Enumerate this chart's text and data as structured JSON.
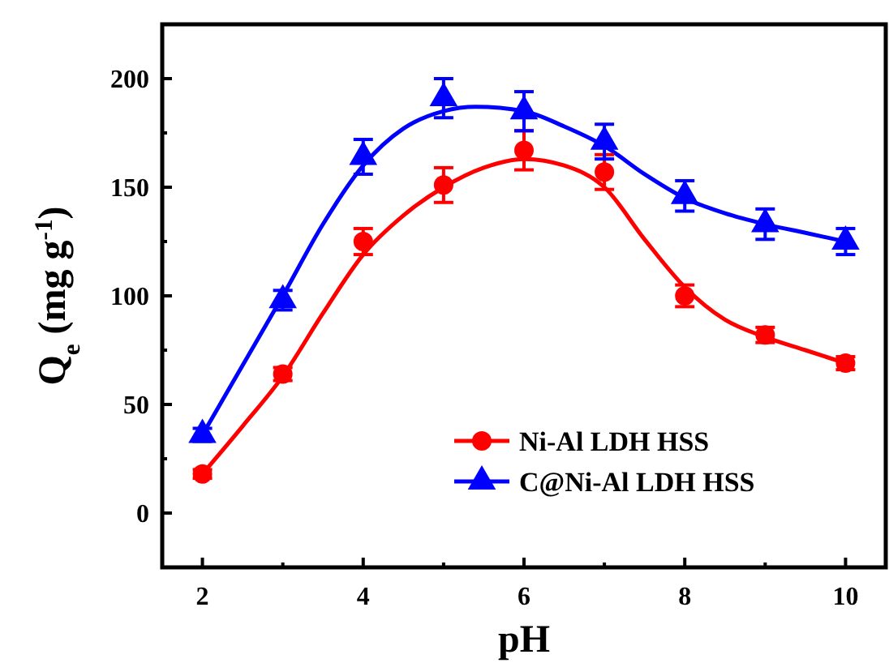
{
  "chart_data": {
    "type": "scatter",
    "xlabel": "pH",
    "ylabel": "Q$_{e}$ (mg g$^{-1}$)",
    "xlim": [
      1.5,
      10.5
    ],
    "xticks": [
      2,
      {
        "value": 3,
        "label": null
      },
      4,
      {
        "value": 5,
        "label": null
      },
      6,
      {
        "value": 7,
        "label": null
      },
      8,
      {
        "value": 9,
        "label": null
      },
      10
    ],
    "ylim": [
      -25,
      225
    ],
    "yticks": [
      0,
      {
        "value": 25,
        "label": null
      },
      50,
      {
        "value": 75,
        "label": null
      },
      100,
      {
        "value": 125,
        "label": null
      },
      150,
      {
        "value": 175,
        "label": null
      },
      200
    ],
    "grid": false,
    "legend": "bottom right",
    "series": [
      {
        "name": "Ni-Al LDH HSS",
        "color": "#ff0000",
        "marker": "circle",
        "x": [
          2,
          3,
          4,
          5,
          6,
          7,
          8,
          9,
          10
        ],
        "values": [
          18,
          64,
          125,
          151,
          167,
          157,
          100,
          82,
          69
        ],
        "errors": [
          2,
          3,
          6,
          8,
          9,
          8,
          5,
          3.5,
          3
        ]
      },
      {
        "name": "C@Ni-Al LDH HSS",
        "color": "#0000ff",
        "marker": "triangle",
        "x": [
          2,
          3,
          4,
          5,
          6,
          7,
          8,
          9,
          10
        ],
        "values": [
          36,
          98,
          164,
          191,
          185,
          171,
          146,
          133,
          125
        ],
        "errors": [
          3,
          4.5,
          8,
          9,
          9,
          8,
          7,
          7,
          6
        ]
      },
      {
        "type": "line",
        "color": "#ff0000",
        "x": [
          2,
          2.5,
          3,
          3.5,
          4,
          4.5,
          5,
          5.5,
          6,
          6.5,
          7,
          7.5,
          8,
          8.5,
          9,
          9.5,
          10
        ],
        "values": [
          18,
          40,
          63,
          92,
          119,
          137,
          150,
          159,
          163,
          160,
          150,
          126,
          104,
          89,
          81,
          75,
          69
        ]
      },
      {
        "type": "line",
        "color": "#0000ff",
        "x": [
          2,
          2.5,
          3,
          3.5,
          4,
          4.5,
          5,
          5.4,
          6,
          6.5,
          7,
          7.5,
          8,
          8.5,
          9,
          9.5,
          10
        ],
        "values": [
          36,
          68,
          100,
          133,
          160,
          177,
          185,
          187,
          185,
          178,
          169,
          156,
          145,
          138,
          133,
          129,
          125
        ]
      }
    ]
  }
}
